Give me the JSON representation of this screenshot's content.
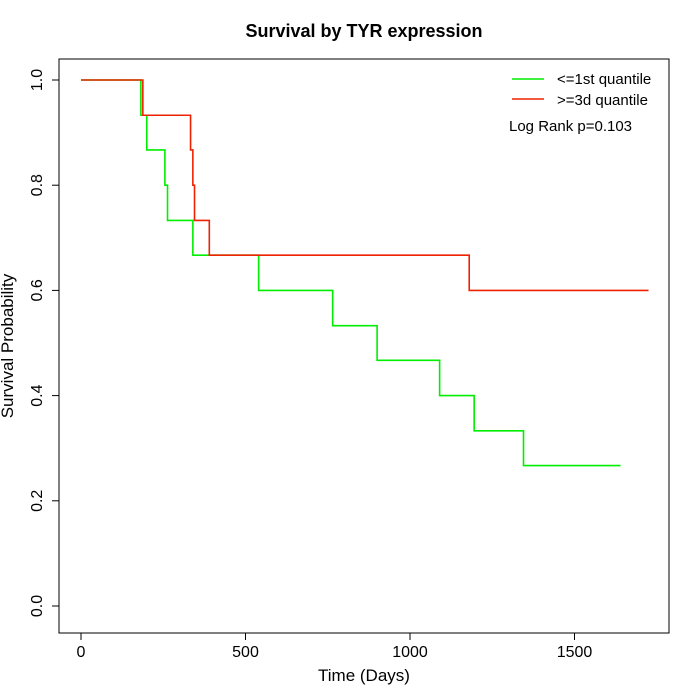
{
  "chart_data": {
    "type": "line",
    "title": "Survival by TYR expression",
    "xlabel": "Time (Days)",
    "ylabel": "Survival Probability",
    "xlim": [
      0,
      1725
    ],
    "ylim": [
      0,
      1
    ],
    "x_ticks": [
      0,
      500,
      1000,
      1500
    ],
    "y_ticks": [
      0.0,
      0.2,
      0.4,
      0.6,
      0.8,
      1.0
    ],
    "x_tick_labels": [
      "0",
      "500",
      "1000",
      "1500"
    ],
    "y_tick_labels": [
      "0.0",
      "0.2",
      "0.4",
      "0.6",
      "0.8",
      "1.0"
    ],
    "grid": false,
    "legend_position": "top-right",
    "annotation": "Log Rank p=0.103",
    "series": [
      {
        "name": "<=1st quantile",
        "color": "#00ee00",
        "step": true,
        "x": [
          0,
          182,
          200,
          255,
          263,
          340,
          540,
          765,
          900,
          1090,
          1195,
          1345,
          1640
        ],
        "y": [
          1.0,
          0.933,
          0.867,
          0.8,
          0.733,
          0.667,
          0.6,
          0.533,
          0.467,
          0.4,
          0.333,
          0.267,
          0.267
        ]
      },
      {
        "name": ">=3d quantile",
        "color": "#ee2200",
        "step": true,
        "x": [
          0,
          188,
          333,
          340,
          345,
          390,
          1180,
          1725
        ],
        "y": [
          1.0,
          0.933,
          0.867,
          0.8,
          0.733,
          0.667,
          0.6,
          0.6
        ]
      }
    ]
  }
}
